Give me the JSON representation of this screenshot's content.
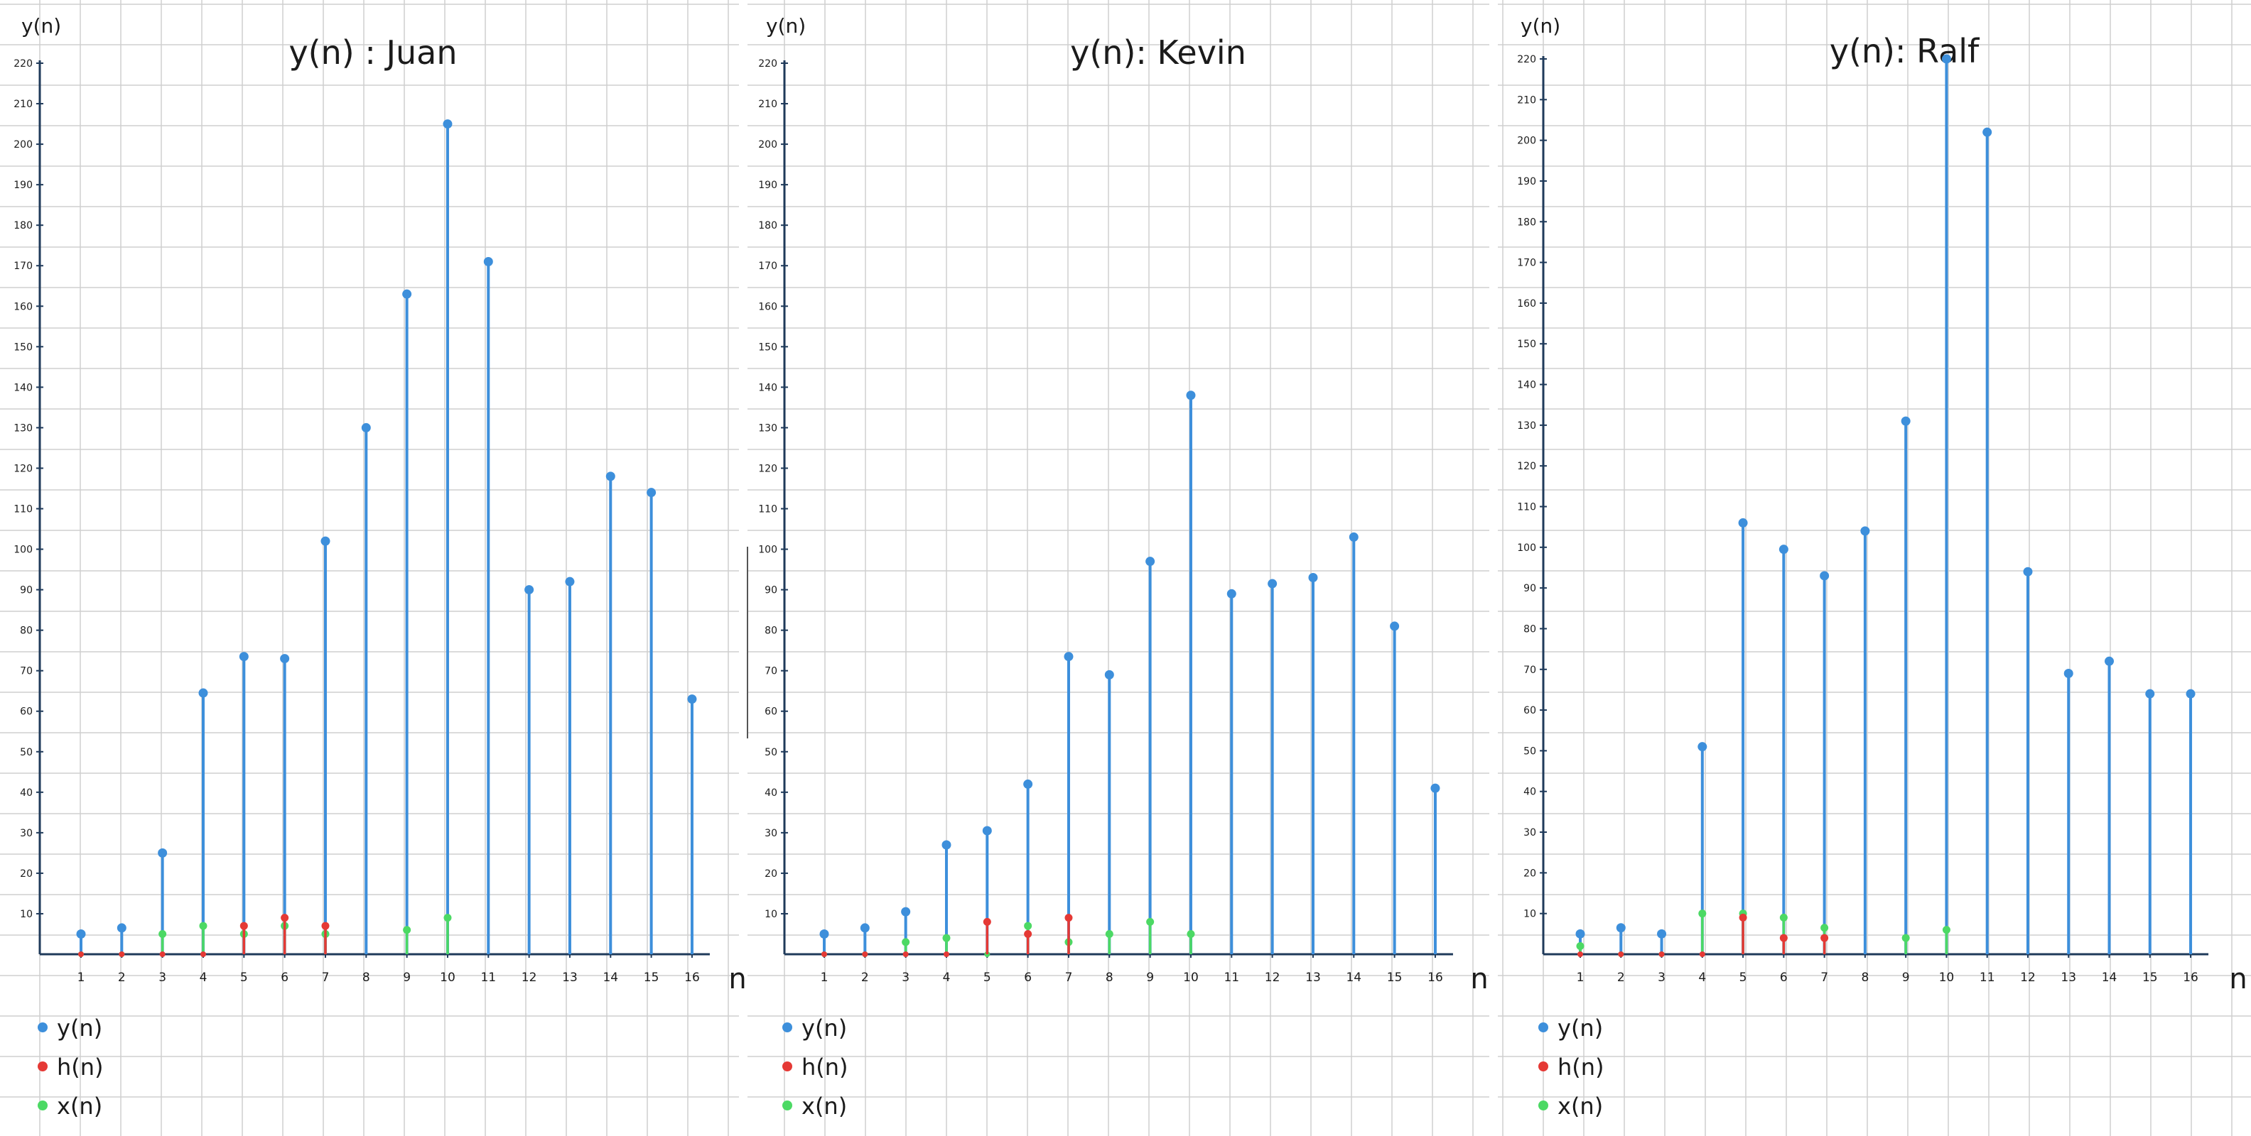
{
  "chart_data": [
    {
      "type": "stem",
      "title": "y(n) : Juan",
      "ylabel": "y(n)",
      "xlabel": "n",
      "ylim": [
        0,
        220
      ],
      "grid": true,
      "x_ticks": [
        "1",
        "2",
        "3",
        "4",
        "5",
        "6",
        "7",
        "8",
        "9",
        "10",
        "11",
        "12",
        "13",
        "14",
        "15",
        "16"
      ],
      "y_ticks": [
        "10",
        "20",
        "30",
        "40",
        "50",
        "60",
        "70",
        "80",
        "90",
        "100",
        "110",
        "120",
        "130",
        "140",
        "150",
        "160",
        "170",
        "180",
        "190",
        "200",
        "210",
        "220"
      ],
      "legend": [
        "y(n)",
        "h(n)",
        "x(n)"
      ],
      "legend_position": "bottom-left",
      "series": [
        {
          "name": "y(n)",
          "color": "#3d8fdb",
          "values": [
            5,
            6.5,
            25,
            64.5,
            73.5,
            73,
            102,
            130,
            163,
            205,
            171,
            90,
            92,
            118,
            114,
            63
          ]
        },
        {
          "name": "h(n)",
          "color": "#e53935",
          "values": [
            0,
            0,
            0,
            0,
            7,
            9,
            7,
            0,
            0,
            0,
            0,
            0,
            0,
            0,
            0,
            0
          ]
        },
        {
          "name": "x(n)",
          "color": "#4cd964",
          "values": [
            0,
            0,
            5,
            7,
            5,
            7,
            5,
            0,
            6,
            9,
            0,
            0,
            0,
            0,
            0,
            0
          ]
        }
      ]
    },
    {
      "type": "stem",
      "title": "y(n): Kevin",
      "ylabel": "y(n)",
      "xlabel": "n",
      "ylim": [
        0,
        220
      ],
      "grid": true,
      "x_ticks": [
        "1",
        "2",
        "3",
        "4",
        "5",
        "6",
        "7",
        "8",
        "9",
        "10",
        "11",
        "12",
        "13",
        "14",
        "15",
        "16"
      ],
      "y_ticks": [
        "10",
        "20",
        "30",
        "40",
        "50",
        "60",
        "70",
        "80",
        "90",
        "100",
        "110",
        "120",
        "130",
        "140",
        "150",
        "160",
        "170",
        "180",
        "190",
        "200",
        "210",
        "220"
      ],
      "legend": [
        "y(n)",
        "h(n)",
        "x(n)"
      ],
      "legend_position": "bottom-left",
      "series": [
        {
          "name": "y(n)",
          "color": "#3d8fdb",
          "values": [
            5,
            6.5,
            10.5,
            27,
            30.5,
            42,
            73.5,
            69,
            97,
            138,
            89,
            91.5,
            93,
            103,
            81,
            41
          ]
        },
        {
          "name": "h(n)",
          "color": "#e53935",
          "values": [
            0,
            0,
            0,
            0,
            8,
            5,
            9,
            0,
            0,
            0,
            0,
            0,
            0,
            0,
            0,
            0
          ]
        },
        {
          "name": "x(n)",
          "color": "#4cd964",
          "values": [
            0,
            0,
            3,
            4,
            0,
            7,
            3,
            5,
            8,
            5,
            0,
            0,
            0,
            0,
            0,
            0
          ]
        }
      ]
    },
    {
      "type": "stem",
      "title": "y(n): Ralf",
      "ylabel": "y(n)",
      "xlabel": "n",
      "ylim": [
        0,
        220
      ],
      "grid": true,
      "x_ticks": [
        "1",
        "2",
        "3",
        "4",
        "5",
        "6",
        "7",
        "8",
        "9",
        "10",
        "11",
        "12",
        "13",
        "14",
        "15",
        "16"
      ],
      "y_ticks": [
        "10",
        "20",
        "30",
        "40",
        "50",
        "60",
        "70",
        "80",
        "90",
        "100",
        "110",
        "120",
        "130",
        "140",
        "150",
        "160",
        "170",
        "180",
        "190",
        "200",
        "210",
        "220"
      ],
      "legend": [
        "y(n)",
        "h(n)",
        "x(n)"
      ],
      "legend_position": "bottom-left",
      "series": [
        {
          "name": "y(n)",
          "color": "#3d8fdb",
          "values": [
            5,
            6.5,
            5,
            51,
            106,
            99.5,
            93,
            104,
            131,
            220,
            202,
            94,
            69,
            72,
            64,
            64
          ]
        },
        {
          "name": "h(n)",
          "color": "#e53935",
          "values": [
            0,
            0,
            0,
            0,
            9,
            4,
            4,
            0,
            0,
            0,
            0,
            0,
            0,
            0,
            0,
            0
          ]
        },
        {
          "name": "x(n)",
          "color": "#4cd964",
          "values": [
            2,
            0,
            0,
            10,
            10,
            9,
            6.5,
            0,
            4,
            6,
            0,
            0,
            0,
            0,
            0,
            0
          ]
        }
      ]
    }
  ]
}
